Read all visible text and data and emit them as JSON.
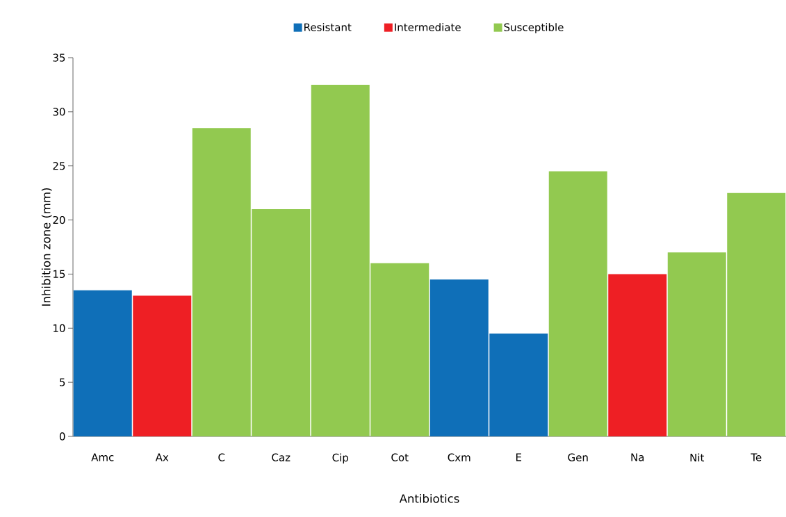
{
  "chart_data": {
    "type": "bar",
    "xlabel": "Antibiotics",
    "ylabel": "Inhibition zone (mm)",
    "categories": [
      "Amc",
      "Ax",
      "C",
      "Caz",
      "Cip",
      "Cot",
      "Cxm",
      "E",
      "Gen",
      "Na",
      "Nit",
      "Te"
    ],
    "series": [
      {
        "name": "Resistant",
        "color": "#0f6fb8",
        "values": [
          13.5,
          null,
          null,
          null,
          null,
          null,
          14.5,
          9.5,
          null,
          null,
          null,
          null
        ]
      },
      {
        "name": "Intermediate",
        "color": "#ee1f24",
        "values": [
          null,
          13,
          null,
          null,
          null,
          null,
          null,
          null,
          null,
          15,
          null,
          null
        ]
      },
      {
        "name": "Susceptible",
        "color": "#92c950",
        "values": [
          null,
          null,
          28.5,
          21,
          32.5,
          16,
          null,
          null,
          24.5,
          null,
          17,
          22.5
        ]
      }
    ],
    "ylim": [
      0,
      35
    ],
    "yticks": [
      0,
      5,
      10,
      15,
      20,
      25,
      30,
      35
    ],
    "legend": "top"
  }
}
